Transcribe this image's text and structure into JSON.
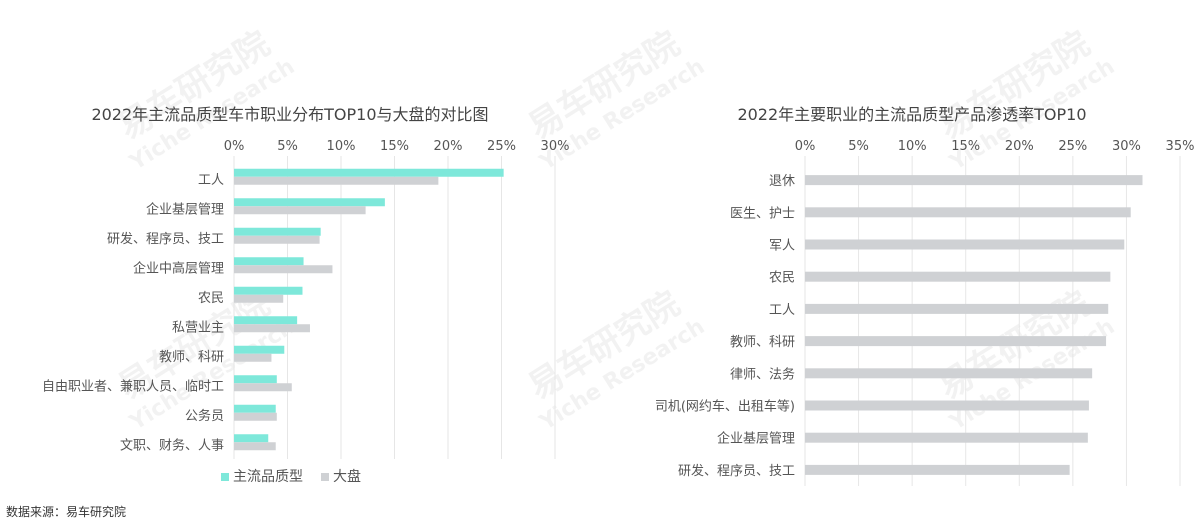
{
  "source": "数据来源：易车研究院",
  "watermark": {
    "cn": "易车研究院",
    "en": "Yiche Research"
  },
  "colors": {
    "primary": "#7ee8da",
    "market": "#cfd1d4",
    "text": "#555555",
    "title": "#444444",
    "grid": "#e6e6e6"
  },
  "chart_data": [
    {
      "type": "bar",
      "orientation": "horizontal",
      "title": "2022年主流品质型车市职业分布TOP10与大盘的对比图",
      "categories": [
        "工人",
        "企业基层管理",
        "研发、程序员、技工",
        "企业中高层管理",
        "农民",
        "私营业主",
        "教师、科研",
        "自由职业者、兼职人员、临时工",
        "公务员",
        "文职、财务、人事"
      ],
      "series": [
        {
          "name": "主流品质型",
          "color": "#7ee8da",
          "values": [
            25.2,
            14.1,
            8.1,
            6.5,
            6.4,
            5.9,
            4.7,
            4.0,
            3.9,
            3.2
          ]
        },
        {
          "name": "大盘",
          "color": "#cfd1d4",
          "values": [
            19.1,
            12.3,
            8.0,
            9.2,
            4.6,
            7.1,
            3.5,
            5.4,
            4.0,
            3.9
          ]
        }
      ],
      "xlim": [
        0,
        30
      ],
      "ticks": [
        "0%",
        "5%",
        "10%",
        "15%",
        "20%",
        "25%",
        "30%"
      ],
      "legend": "bottom",
      "grid": true
    },
    {
      "type": "bar",
      "orientation": "horizontal",
      "title": "2022年主要职业的主流品质型产品渗透率TOP10",
      "categories": [
        "退休",
        "医生、护士",
        "军人",
        "农民",
        "工人",
        "教师、科研",
        "律师、法务",
        "司机(网约车、出租车等)",
        "企业基层管理",
        "研发、程序员、技工"
      ],
      "series": [
        {
          "color": "#cfd1d4",
          "values": [
            31.5,
            30.4,
            29.8,
            28.5,
            28.3,
            28.1,
            26.8,
            26.5,
            26.4,
            24.7
          ]
        }
      ],
      "xlim": [
        0,
        35
      ],
      "ticks": [
        "0%",
        "5%",
        "10%",
        "15%",
        "20%",
        "25%",
        "30%",
        "35%"
      ],
      "legend": "none",
      "grid": true
    }
  ]
}
